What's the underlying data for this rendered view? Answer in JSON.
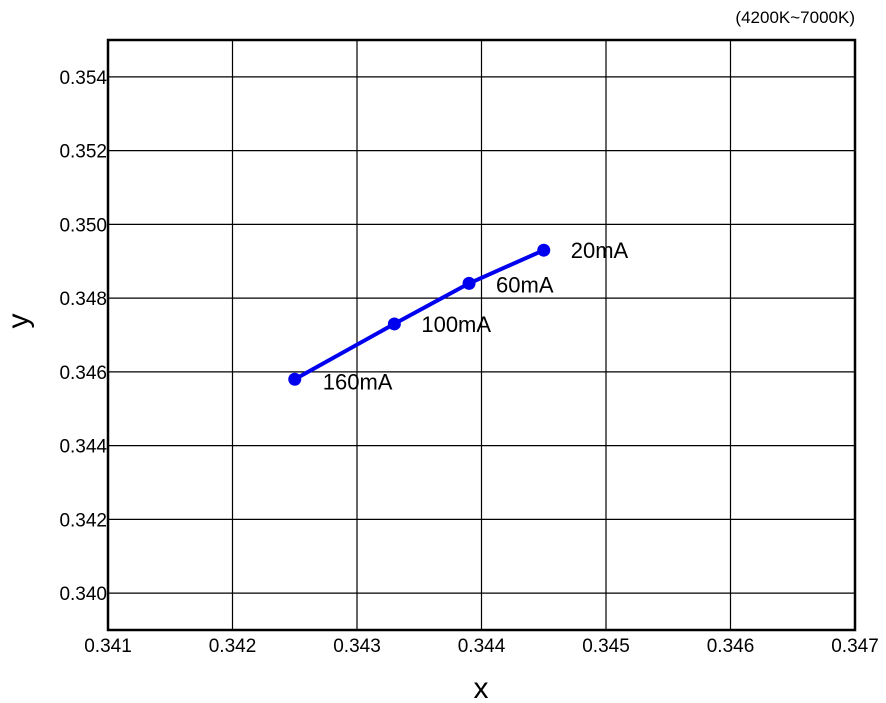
{
  "chart_data": {
    "type": "line",
    "title": "",
    "note": "(4200K~7000K)",
    "xlabel": "x",
    "ylabel": "y",
    "xlim": [
      0.341,
      0.347
    ],
    "ylim": [
      0.339,
      0.355
    ],
    "xticks": [
      0.341,
      0.342,
      0.343,
      0.344,
      0.345,
      0.346,
      0.347
    ],
    "xtick_labels": [
      "0.341",
      "0.342",
      "0.343",
      "0.344",
      "0.345",
      "0.346",
      "0.347"
    ],
    "yticks": [
      0.34,
      0.342,
      0.344,
      0.346,
      0.348,
      0.35,
      0.352,
      0.354
    ],
    "ytick_labels": [
      "0.340",
      "0.342",
      "0.344",
      "0.346",
      "0.348",
      "0.350",
      "0.352",
      "0.354"
    ],
    "grid": true,
    "legend": "none",
    "series": [
      {
        "color": "#0000ee",
        "points": [
          {
            "x": 0.3445,
            "y": 0.3493,
            "label": "20mA"
          },
          {
            "x": 0.3439,
            "y": 0.3484,
            "label": "60mA"
          },
          {
            "x": 0.3433,
            "y": 0.3473,
            "label": "100mA"
          },
          {
            "x": 0.3425,
            "y": 0.3458,
            "label": "160mA"
          }
        ]
      }
    ]
  }
}
